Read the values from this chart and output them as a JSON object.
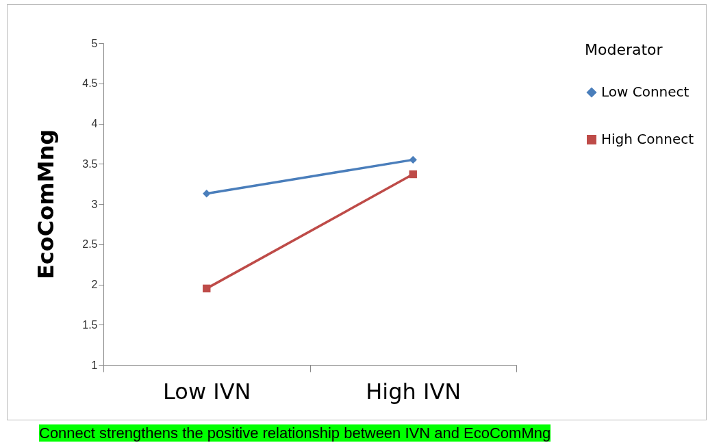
{
  "chart_data": {
    "type": "line",
    "ylabel": "EcoComMng",
    "legend_title": "Moderator",
    "categories": [
      "Low IVN",
      "High IVN"
    ],
    "series": [
      {
        "name": "Low Connect",
        "color": "#4a7ebb",
        "marker": "diamond",
        "values": [
          3.13,
          3.55
        ]
      },
      {
        "name": "High Connect",
        "color": "#be4b48",
        "marker": "square",
        "values": [
          1.95,
          3.37
        ]
      }
    ],
    "ylim": [
      1,
      5
    ],
    "yticks": [
      1,
      1.5,
      2,
      2.5,
      3,
      3.5,
      4,
      4.5,
      5
    ],
    "grid": false,
    "legend": "right",
    "line_style": "solid",
    "annotations": [
      "Connect strengthens the positive relationship between IVN and EcoComMng"
    ]
  }
}
